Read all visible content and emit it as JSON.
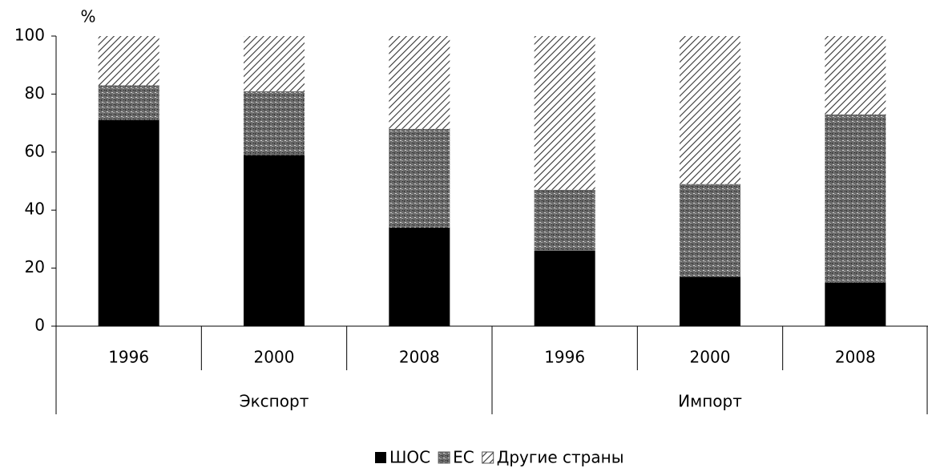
{
  "chart_data": {
    "type": "stacked_bar",
    "y_label": "%",
    "categories": [
      "1996",
      "2000",
      "2008",
      "1996",
      "2000",
      "2008"
    ],
    "group_labels": [
      "Экспорт",
      "Импорт"
    ],
    "series": [
      {
        "name": "ШОС",
        "color": "#000000",
        "pattern": "solid",
        "values": [
          71,
          59,
          34,
          26,
          17,
          15
        ]
      },
      {
        "name": "ЕС",
        "color": "#707070",
        "pattern": "dots",
        "values": [
          12,
          22,
          34,
          21,
          32,
          58
        ]
      },
      {
        "name": "Другие страны",
        "color": "#333333",
        "pattern": "hatch",
        "values": [
          17,
          19,
          32,
          53,
          51,
          27
        ]
      }
    ],
    "ylim": [
      0,
      100
    ],
    "yticks": [
      0,
      20,
      40,
      60,
      80,
      100
    ],
    "legend": "bottom"
  }
}
